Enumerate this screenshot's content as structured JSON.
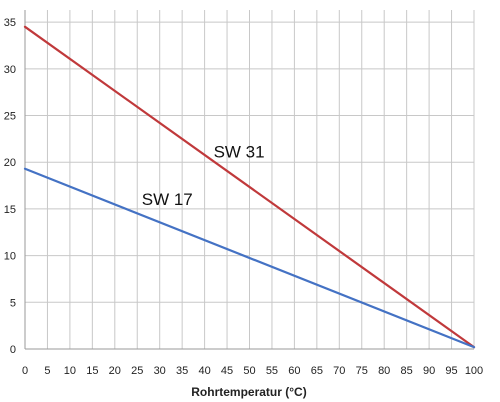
{
  "chart_data": {
    "type": "line",
    "title": "",
    "xlabel": "Rohrtemperatur (°C)",
    "ylabel": "",
    "x_ticks": [
      0,
      5,
      10,
      15,
      20,
      25,
      30,
      35,
      40,
      45,
      50,
      55,
      60,
      65,
      70,
      75,
      80,
      85,
      90,
      95,
      100
    ],
    "y_ticks": [
      0,
      5,
      10,
      15,
      20,
      25,
      30,
      35
    ],
    "xlim": [
      0,
      100
    ],
    "ylim": [
      0,
      36.3
    ],
    "grid": true,
    "legend": "none",
    "series": [
      {
        "name": "SW 31",
        "color": "#c0393b",
        "x": [
          0,
          100
        ],
        "y": [
          34.5,
          0.2
        ],
        "label_anchor": {
          "x": 42,
          "y": 20.5
        }
      },
      {
        "name": "SW 17",
        "color": "#4472c4",
        "x": [
          0,
          100
        ],
        "y": [
          19.3,
          0.2
        ],
        "label_anchor": {
          "x": 26,
          "y": 15.4
        }
      }
    ]
  }
}
